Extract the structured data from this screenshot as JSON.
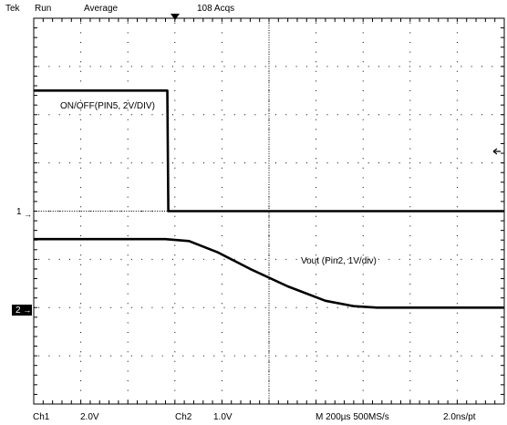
{
  "header": {
    "brand": "Tek",
    "mode": "Run",
    "acquisition": "Average",
    "acq_count": "108 Acqs"
  },
  "footer": {
    "ch1_label": "Ch1",
    "ch1_scale": "2.0V",
    "ch2_label": "Ch2",
    "ch2_scale": "1.0V",
    "timebase": "M 200µs 500MS/s",
    "sample_interval": "2.0ns/pt"
  },
  "markers": {
    "ch1": "1",
    "ch2": "2"
  },
  "colors": {
    "background": "#ffffff",
    "trace": "#000000",
    "grid": "#000000",
    "marker_bg": "#000000",
    "marker_fg": "#ffffff"
  },
  "chart_data": {
    "type": "line",
    "title": "",
    "grid": true,
    "xlabel": "",
    "ylabel": "",
    "x_unit": "div",
    "xlim": [
      0,
      10
    ],
    "ylim": [
      -4,
      4
    ],
    "annotations": [
      {
        "text": "ON/OFF(PIN5, 2V/DIV)",
        "series": "ch1"
      },
      {
        "text": "Vout (Pin2, 1V/div)",
        "series": "ch2"
      }
    ],
    "series": [
      {
        "name": "ch1",
        "volts_per_div": 2.0,
        "ground_div": 0,
        "x": [
          0,
          2.84,
          2.86,
          10
        ],
        "y": [
          2.5,
          2.5,
          0,
          0
        ]
      },
      {
        "name": "ch2",
        "volts_per_div": 1.0,
        "ground_div": -2,
        "x": [
          0,
          2.8,
          3.3,
          3.9,
          4.6,
          5.4,
          6.2,
          6.8,
          7.3,
          10
        ],
        "y": [
          -0.58,
          -0.58,
          -0.62,
          -0.85,
          -1.2,
          -1.56,
          -1.86,
          -1.97,
          -2.0,
          -2.0
        ]
      }
    ]
  }
}
